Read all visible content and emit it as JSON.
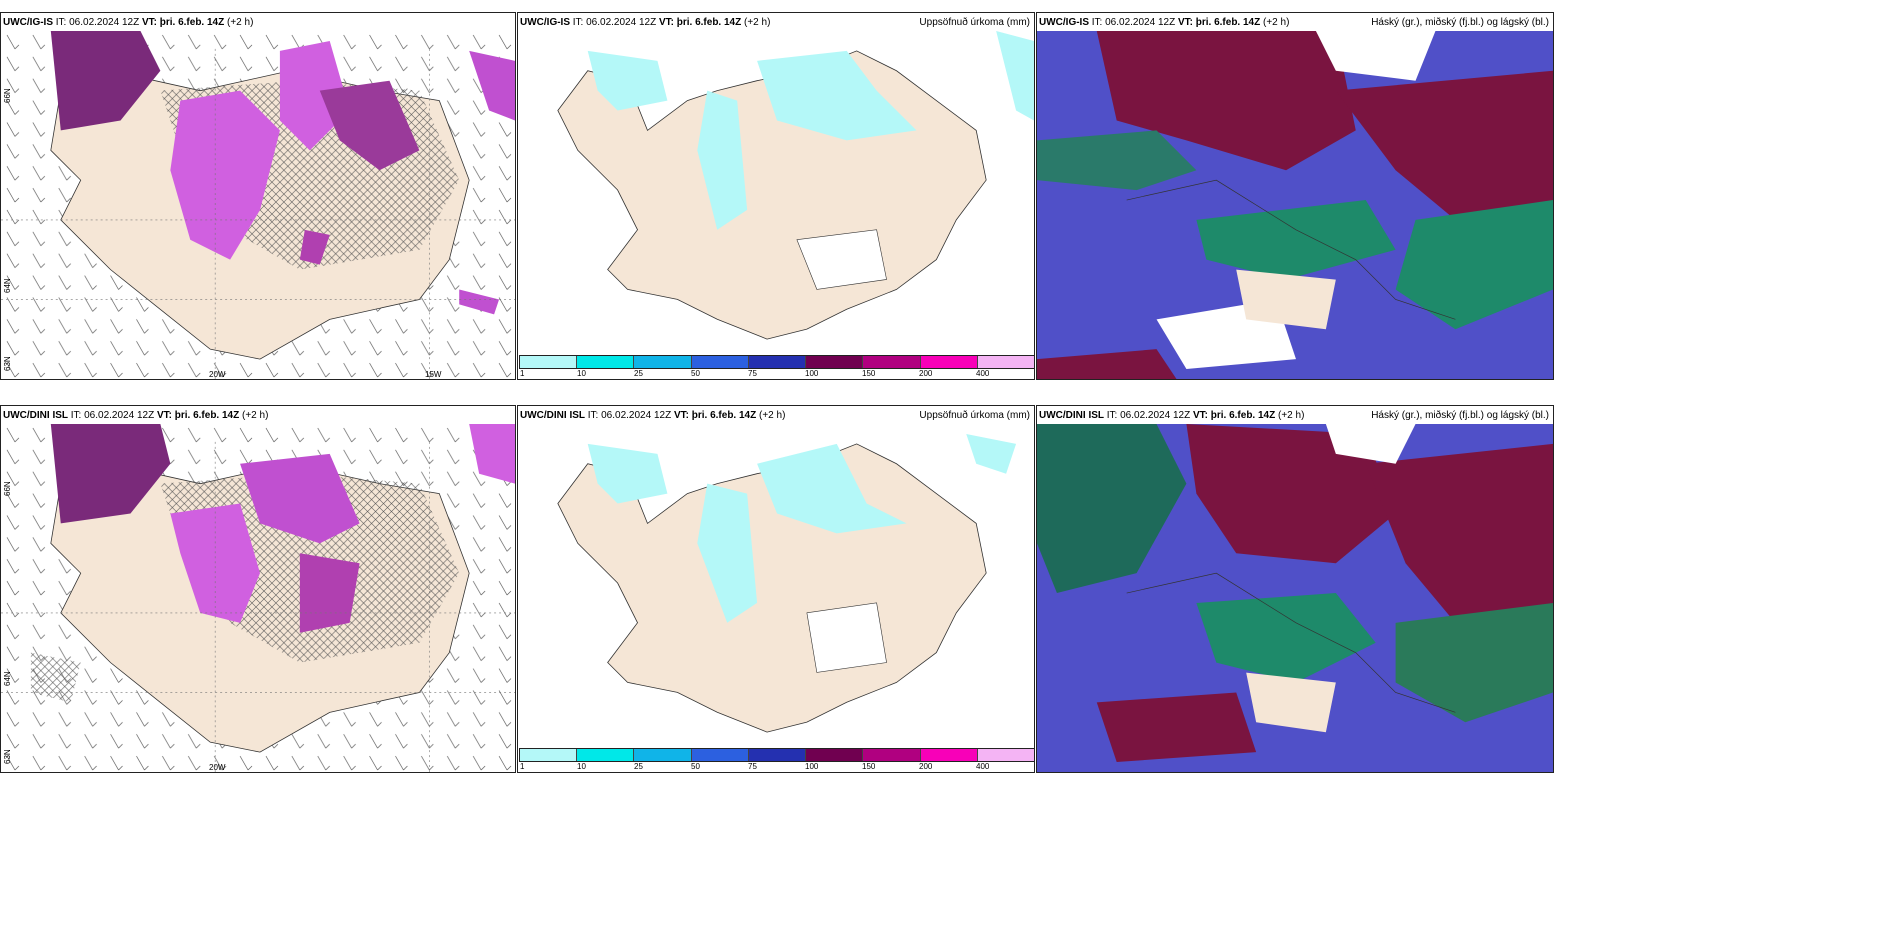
{
  "rows": [
    {
      "model": "UWC/IG-IS",
      "left": {
        "it_label": "IT:",
        "it": "06.02.2024 12Z",
        "vt_label": "VT:",
        "vt": "þri. 6.feb. 14Z",
        "lead": "(+2 h)"
      },
      "middle": {
        "it_label": "IT:",
        "it": "06.02.2024 12Z",
        "vt_label": "VT:",
        "vt": "þri. 6.feb. 14Z",
        "lead": "(+2 h)",
        "right_title": "Uppsöfnuð úrkoma (mm)"
      },
      "right": {
        "it_label": "IT:",
        "it": "06.02.2024 12Z",
        "vt_label": "VT:",
        "vt": "þri. 6.feb. 14Z",
        "lead": "(+2 h)",
        "right_title": "Háský (gr.), miðský (fj.bl.) og lágský (bl.)"
      }
    },
    {
      "model": "UWC/DINI ISL",
      "left": {
        "it_label": "IT:",
        "it": "06.02.2024 12Z",
        "vt_label": "VT:",
        "vt": "þri. 6.feb. 14Z",
        "lead": "(+2 h)"
      },
      "middle": {
        "it_label": "IT:",
        "it": "06.02.2024 12Z",
        "vt_label": "VT:",
        "vt": "þri. 6.feb. 14Z",
        "lead": "(+2 h)",
        "right_title": "Uppsöfnuð úrkoma (mm)"
      },
      "right": {
        "it_label": "IT:",
        "it": "06.02.2024 12Z",
        "vt_label": "VT:",
        "vt": "þri. 6.feb. 14Z",
        "lead": "(+2 h)",
        "right_title": "Háský (gr.), miðský (fj.bl.) og lágský (bl.)"
      }
    }
  ],
  "grid_labels": {
    "lon_20w": "20W",
    "lon_15w": "15W",
    "lat_66n": "66N",
    "lat_64n": "64N",
    "lat_63n": "63N"
  },
  "colorbar": {
    "ticks": [
      "1",
      "10",
      "25",
      "50",
      "75",
      "100",
      "150",
      "200",
      "400"
    ],
    "colors": [
      "#b4f8f8",
      "#00e8e8",
      "#10b4e8",
      "#2c60e0",
      "#2430b0",
      "#700050",
      "#b00080",
      "#f800b8",
      "#f4b4f4"
    ]
  },
  "colors": {
    "land": "#f5e6d6",
    "precip_light": "#d060e0",
    "precip_dark": "#7a2a7a",
    "cloud_high": "#7a1440",
    "cloud_mid": "#5050c8",
    "cloud_low": "#1e8a6a"
  }
}
